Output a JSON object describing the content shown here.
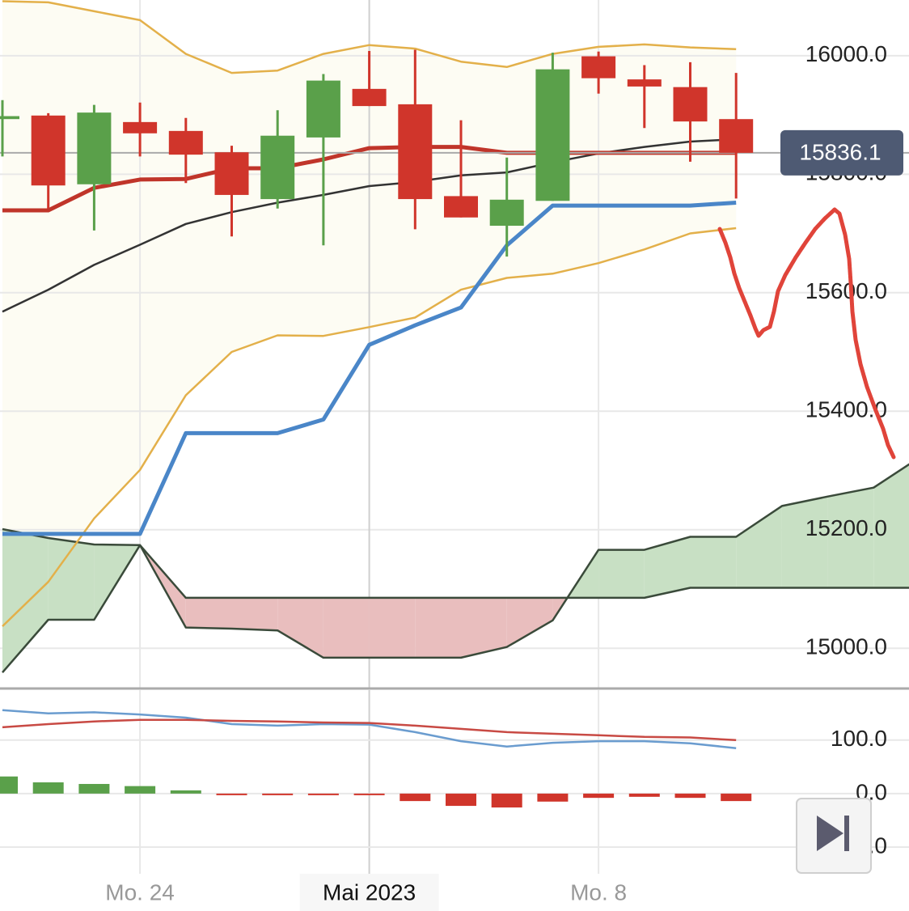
{
  "chart_data": [
    {
      "type": "candlestick",
      "categories": [
        null,
        null,
        null,
        "Mo. 24",
        null,
        null,
        null,
        null,
        "Mai 2023",
        null,
        null,
        null,
        null,
        "Mo. 8",
        null,
        null,
        null,
        null,
        null,
        null,
        null
      ],
      "highlight_category": 8,
      "open": [
        15893,
        15899,
        15783,
        15888,
        15873,
        15837,
        15758,
        15862,
        15944,
        15918,
        15763,
        15713,
        15755,
        15999,
        15960,
        15947,
        15893,
        null,
        null,
        null,
        null
      ],
      "high": [
        15925,
        15903,
        15917,
        15921,
        15895,
        15848,
        15908,
        15969,
        16008,
        16010,
        15891,
        15828,
        16005,
        16007,
        15984,
        15989,
        15971,
        null,
        null,
        null,
        null
      ],
      "low": [
        15830,
        15742,
        15705,
        15830,
        15785,
        15695,
        15742,
        15680,
        15915,
        15707,
        15727,
        15661,
        15755,
        15936,
        15878,
        15821,
        15759,
        null,
        null,
        null,
        null
      ],
      "close": [
        15898,
        15781,
        15904,
        15869,
        15833,
        15765,
        15865,
        15958,
        15915,
        15758,
        15727,
        15757,
        15977,
        15962,
        15948,
        15889,
        15836.1,
        null,
        null,
        null,
        null
      ],
      "up_color": "#5aa04a",
      "down_color": "#d0352b",
      "band": {
        "color": "#e3b04a",
        "fill": "#fdfcf3",
        "upper": [
          16092,
          16090,
          16075,
          16060,
          16003,
          15971,
          15975,
          16003,
          16018,
          16012,
          15990,
          15981,
          16003,
          16015,
          16019,
          16014,
          16011,
          null,
          null,
          null,
          null
        ],
        "lower": [
          15037,
          15112,
          15219,
          15301,
          15427,
          15500,
          15528,
          15527,
          15542,
          15558,
          15605,
          15625,
          15632,
          15650,
          15673,
          15700,
          15709,
          null,
          null,
          null,
          null
        ]
      },
      "series": [
        {
          "color": "#333333",
          "values": [
            15568,
            15605,
            15647,
            15681,
            15716,
            15736,
            15752,
            15765,
            15780,
            15787,
            15798,
            15803,
            15820,
            15835,
            15846,
            15855,
            15859,
            null,
            null,
            null,
            null
          ]
        },
        {
          "color": "#c0352a",
          "values": [
            15739,
            15739,
            15777,
            15791,
            15792,
            15810,
            15810,
            15825,
            15844,
            15846,
            15846,
            15836,
            15836,
            15836,
            15836,
            15836,
            15836,
            null,
            null,
            null,
            null
          ]
        },
        {
          "color": "#4a86c8",
          "values": [
            15193,
            15193,
            15193,
            15193,
            15363,
            15363,
            15363,
            15386,
            15512,
            15545,
            15575,
            15680,
            15747,
            15747,
            15747,
            15747,
            15752,
            null,
            null,
            null,
            null
          ]
        }
      ],
      "cloud": {
        "up_color": "#c8e0c4",
        "down_color": "#e9bebe",
        "line_color": "#3a4a3a",
        "span_a": [
          15201,
          15186,
          15175,
          15174,
          15035,
          15033,
          15030,
          14984,
          14984,
          14984,
          14984,
          15002,
          15047,
          15166,
          15166,
          15188,
          15188,
          15240,
          15256,
          15271,
          15322
        ],
        "span_b": [
          14959,
          15048,
          15048,
          15174,
          15085,
          15085,
          15085,
          15085,
          15085,
          15085,
          15085,
          15085,
          15085,
          15085,
          15085,
          15102,
          15102,
          15102,
          15102,
          15102,
          15102
        ]
      },
      "ylim": [
        14932,
        16094
      ],
      "yticks": [
        {
          "value": 15000,
          "label": "15000.0"
        },
        {
          "value": 15200,
          "label": "15200.0"
        },
        {
          "value": 15400,
          "label": "15400.0"
        },
        {
          "value": 15600,
          "label": "15600.0"
        },
        {
          "value": 15800,
          "label": "15800.0"
        },
        {
          "value": 16000,
          "label": "16000.0"
        }
      ],
      "grid": true
    },
    {
      "type": "macd",
      "series": [
        {
          "color": "#6a9ccf",
          "values": [
            156,
            150,
            152,
            148,
            142,
            130,
            127,
            130,
            129,
            115,
            98,
            88,
            95,
            98,
            98,
            94,
            85,
            null,
            null,
            null,
            null
          ]
        },
        {
          "color": "#c84a44",
          "values": [
            124,
            130,
            135,
            138,
            138,
            136,
            135,
            133,
            132,
            127,
            121,
            115,
            112,
            109,
            106,
            105,
            100,
            null,
            null,
            null,
            null
          ]
        }
      ],
      "histogram": {
        "up_color": "#5aa04a",
        "down_color": "#d0352b",
        "values": [
          32,
          21,
          18,
          14,
          6,
          -3,
          -3,
          -1,
          -2,
          -14,
          -23,
          -26,
          -15,
          -8,
          -6,
          -8,
          -14,
          null,
          null,
          null,
          null
        ]
      },
      "ylim": [
        -150,
        195
      ],
      "yticks": [
        {
          "value": -100,
          "label": "-100.0"
        },
        {
          "value": 0,
          "label": "0.0"
        },
        {
          "value": 100,
          "label": "100.0"
        }
      ],
      "grid": true
    }
  ]
}
